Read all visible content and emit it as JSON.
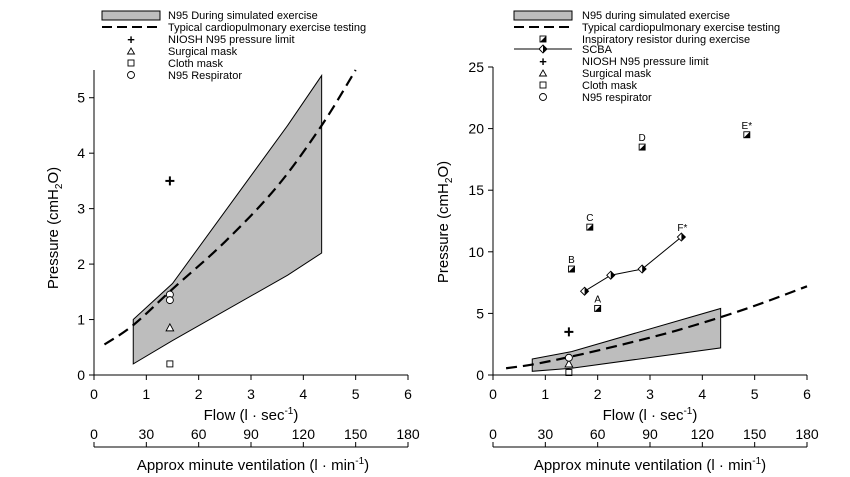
{
  "figure": {
    "colors": {
      "band": "#bdbdbd",
      "ink": "#000000",
      "marker_fill": "#ffffff"
    }
  },
  "chart_data": [
    {
      "type": "line",
      "xlabel": "Flow (l · sec",
      "xlabel_sup": "-1",
      "xlabel_close": ")",
      "ylabel": "Pressure (cmH",
      "ylabel_sub": "2",
      "ylabel_close": "O)",
      "x2label": "Approx minute ventilation (l · min",
      "x2label_sup": "-1",
      "x2label_close": ")",
      "xlim": [
        0,
        6
      ],
      "ylim": [
        0,
        5.5
      ],
      "x2lim": [
        0,
        180
      ],
      "xticks": [
        "0",
        "1",
        "2",
        "3",
        "4",
        "5",
        "6"
      ],
      "yticks": [
        "0",
        "1",
        "2",
        "3",
        "4",
        "5"
      ],
      "x2ticks": [
        "0",
        "30",
        "60",
        "90",
        "120",
        "150",
        "180"
      ],
      "legend": [
        {
          "key": "band",
          "label": "N95 During simulated exercise"
        },
        {
          "key": "dashed",
          "label": "Typical cardiopulmonary exercise testing"
        },
        {
          "key": "plus",
          "label": "NIOSH N95 pressure limit"
        },
        {
          "key": "triangle",
          "label": "Surgical mask"
        },
        {
          "key": "square",
          "label": "Cloth mask"
        },
        {
          "key": "circle",
          "label": "N95 Respirator"
        }
      ],
      "band": {
        "upper": [
          [
            0.75,
            1.0
          ],
          [
            1.5,
            1.65
          ],
          [
            3.7,
            4.5
          ],
          [
            4.35,
            5.4
          ]
        ],
        "lower": [
          [
            0.75,
            0.2
          ],
          [
            1.5,
            0.62
          ],
          [
            3.7,
            1.8
          ],
          [
            4.35,
            2.2
          ]
        ]
      },
      "dashed_curve": [
        [
          0.2,
          0.55
        ],
        [
          0.75,
          0.9
        ],
        [
          1.5,
          1.55
        ],
        [
          2.5,
          2.4
        ],
        [
          3.5,
          3.4
        ],
        [
          4.35,
          4.5
        ],
        [
          5.0,
          5.5
        ]
      ],
      "points": [
        {
          "marker": "plus",
          "x": 1.45,
          "y": 3.5
        },
        {
          "marker": "triangle",
          "x": 1.45,
          "y": 0.85
        },
        {
          "marker": "square",
          "x": 1.45,
          "y": 0.2
        },
        {
          "marker": "circle",
          "x": 1.45,
          "y": 1.45
        },
        {
          "marker": "circle",
          "x": 1.45,
          "y": 1.35
        }
      ]
    },
    {
      "type": "line",
      "xlabel": "Flow (l · sec",
      "xlabel_sup": "-1",
      "xlabel_close": ")",
      "ylabel": "Pressure (cmH",
      "ylabel_sub": "2",
      "ylabel_close": "O)",
      "x2label": "Approx minute ventilation (l · min",
      "x2label_sup": "-1",
      "x2label_close": ")",
      "xlim": [
        0,
        6
      ],
      "ylim": [
        0,
        25
      ],
      "x2lim": [
        0,
        180
      ],
      "xticks": [
        "0",
        "1",
        "2",
        "3",
        "4",
        "5",
        "6"
      ],
      "yticks": [
        "0",
        "5",
        "10",
        "15",
        "20",
        "25"
      ],
      "x2ticks": [
        "0",
        "30",
        "60",
        "90",
        "120",
        "150",
        "180"
      ],
      "legend": [
        {
          "key": "band",
          "label": "N95 during simulated exercise"
        },
        {
          "key": "dashed",
          "label": "Typical cardiopulmonary exercise testing"
        },
        {
          "key": "halfsquare",
          "label": "Inspiratory resistor during exercise"
        },
        {
          "key": "scba",
          "label": "SCBA"
        },
        {
          "key": "plus",
          "label": "NIOSH N95 pressure limit"
        },
        {
          "key": "triangle",
          "label": "Surgical mask"
        },
        {
          "key": "square",
          "label": "Cloth mask"
        },
        {
          "key": "circle",
          "label": "N95 respirator"
        }
      ],
      "band": {
        "upper": [
          [
            0.75,
            1.3
          ],
          [
            1.5,
            1.9
          ],
          [
            4.35,
            5.4
          ]
        ],
        "lower": [
          [
            0.75,
            0.3
          ],
          [
            1.5,
            0.55
          ],
          [
            4.35,
            2.2
          ]
        ]
      },
      "dashed_curve": [
        [
          0.25,
          0.55
        ],
        [
          0.75,
          0.85
        ],
        [
          1.5,
          1.5
        ],
        [
          2.5,
          2.5
        ],
        [
          3.5,
          3.6
        ],
        [
          4.5,
          4.9
        ],
        [
          5.25,
          6.0
        ],
        [
          6.0,
          7.2
        ]
      ],
      "resistor_points": [
        {
          "label": "A",
          "x": 2.0,
          "y": 5.4
        },
        {
          "label": "B",
          "x": 1.5,
          "y": 8.6
        },
        {
          "label": "C",
          "x": 1.85,
          "y": 12.0
        },
        {
          "label": "D",
          "x": 2.85,
          "y": 18.5
        },
        {
          "label": "E*",
          "x": 4.85,
          "y": 19.5
        }
      ],
      "scba_series": {
        "points": [
          [
            1.75,
            6.8
          ],
          [
            2.25,
            8.1
          ],
          [
            2.85,
            8.6
          ],
          [
            3.6,
            11.2
          ]
        ],
        "end_label": "F*"
      },
      "points": [
        {
          "marker": "plus",
          "x": 1.45,
          "y": 3.5
        },
        {
          "marker": "triangle",
          "x": 1.45,
          "y": 0.9
        },
        {
          "marker": "square",
          "x": 1.45,
          "y": 0.2
        },
        {
          "marker": "circle",
          "x": 1.45,
          "y": 1.4
        }
      ]
    }
  ]
}
